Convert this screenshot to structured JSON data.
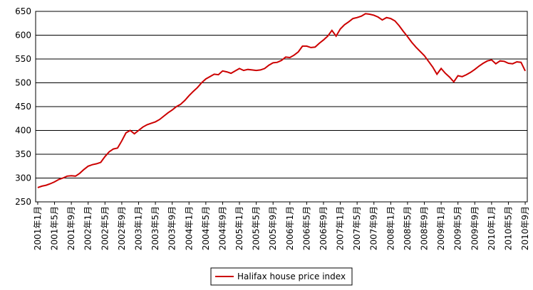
{
  "chart_data": {
    "type": "line",
    "categories": [
      "2001年1月",
      null,
      null,
      null,
      "2001年5月",
      null,
      null,
      null,
      "2001年9月",
      null,
      null,
      null,
      "2002年1月",
      null,
      null,
      null,
      "2002年5月",
      null,
      null,
      null,
      "2002年9月",
      null,
      null,
      null,
      "2003年1月",
      null,
      null,
      null,
      "2003年5月",
      null,
      null,
      null,
      "2003年9月",
      null,
      null,
      null,
      "2004年1月",
      null,
      null,
      null,
      "2004年5月",
      null,
      null,
      null,
      "2004年9月",
      null,
      null,
      null,
      "2005年1月",
      null,
      null,
      null,
      "2005年5月",
      null,
      null,
      null,
      "2005年9月",
      null,
      null,
      null,
      "2006年1月",
      null,
      null,
      null,
      "2006年5月",
      null,
      null,
      null,
      "2006年9月",
      null,
      null,
      null,
      "2007年1月",
      null,
      null,
      null,
      "2007年5月",
      null,
      null,
      null,
      "2007年9月",
      null,
      null,
      null,
      "2008年1月",
      null,
      null,
      null,
      "2008年5月",
      null,
      null,
      null,
      "2008年9月",
      null,
      null,
      null,
      "2009年1月",
      null,
      null,
      null,
      "2009年5月",
      null,
      null,
      null,
      "2009年9月",
      null,
      null,
      null,
      "2010年1月",
      null,
      null,
      null,
      "2010年5月",
      null,
      null,
      null,
      "2010年9月"
    ],
    "series": [
      {
        "name": "Halifax house price index",
        "color": "#cc0000",
        "values": [
          280,
          283,
          285,
          288,
          292,
          297,
          300,
          304,
          305,
          304,
          310,
          318,
          325,
          328,
          330,
          333,
          345,
          355,
          361,
          363,
          378,
          395,
          400,
          393,
          400,
          407,
          412,
          415,
          418,
          423,
          430,
          437,
          443,
          450,
          455,
          463,
          473,
          482,
          490,
          500,
          508,
          513,
          518,
          517,
          525,
          523,
          520,
          525,
          530,
          526,
          528,
          527,
          526,
          527,
          530,
          537,
          542,
          543,
          547,
          554,
          553,
          558,
          565,
          577,
          577,
          574,
          575,
          583,
          590,
          598,
          610,
          598,
          613,
          622,
          628,
          635,
          637,
          640,
          645,
          644,
          642,
          638,
          632,
          637,
          635,
          630,
          620,
          608,
          597,
          585,
          575,
          566,
          557,
          545,
          533,
          518,
          530,
          520,
          512,
          502,
          515,
          513,
          517,
          522,
          528,
          535,
          541,
          546,
          548,
          540,
          546,
          545,
          541,
          540,
          544,
          543,
          525
        ]
      }
    ],
    "ylim": [
      250,
      650
    ],
    "yticks": [
      250,
      300,
      350,
      400,
      450,
      500,
      550,
      600,
      650
    ],
    "grid": true,
    "legend": "bottom"
  }
}
